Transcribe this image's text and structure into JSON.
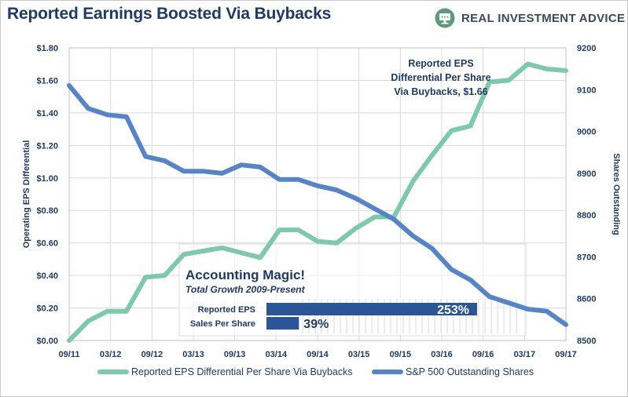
{
  "header": {
    "title": "Reported Earnings Boosted Via Buybacks",
    "brand": "REAL INVESTMENT ADVICE",
    "brand_logo_icon": "chart-monitor-logo-icon"
  },
  "colors": {
    "eps_series": "#7ccaa9",
    "shares_series": "#5585c8",
    "text": "#1f3a66",
    "bar": "#2b5597",
    "grid": "#d9d9d9"
  },
  "chart_data": {
    "type": "line",
    "title": "Reported Earnings Boosted Via Buybacks",
    "x_tick_labels": [
      "09/11",
      "03/12",
      "09/12",
      "03/13",
      "09/13",
      "03/14",
      "09/14",
      "03/15",
      "09/15",
      "03/16",
      "09/16",
      "03/17",
      "09/17"
    ],
    "x_range": [
      0,
      26
    ],
    "y_left": {
      "label": "Operating EPS Differential",
      "ticks": [
        "$0.00",
        "$0.20",
        "$0.40",
        "$0.60",
        "$0.80",
        "$1.00",
        "$1.20",
        "$1.40",
        "$1.60",
        "$1.80"
      ],
      "range": [
        0,
        1.8
      ]
    },
    "y_right": {
      "label": "Shares Outstanding",
      "ticks": [
        "8500",
        "8600",
        "8700",
        "8800",
        "8900",
        "9000",
        "9100",
        "9200"
      ],
      "range": [
        8500,
        9200
      ]
    },
    "series": [
      {
        "name": "Reported EPS Differential Per Share Via Buybacks",
        "axis": "left",
        "x": [
          0,
          1,
          2,
          3,
          4,
          5,
          6,
          7,
          8,
          9,
          10,
          11,
          12,
          13,
          14,
          15,
          16,
          17,
          18,
          19,
          20,
          21,
          22,
          23,
          24,
          25,
          26
        ],
        "values": [
          0.0,
          0.12,
          0.18,
          0.18,
          0.39,
          0.4,
          0.53,
          0.55,
          0.57,
          0.54,
          0.51,
          0.68,
          0.68,
          0.61,
          0.6,
          0.69,
          0.76,
          0.76,
          0.98,
          1.14,
          1.29,
          1.32,
          1.59,
          1.6,
          1.7,
          1.67,
          1.66
        ]
      },
      {
        "name": "S&P 500 Outstanding Shares",
        "axis": "right",
        "x": [
          0,
          1,
          2,
          3,
          4,
          5,
          6,
          7,
          8,
          9,
          10,
          11,
          12,
          13,
          14,
          15,
          16,
          17,
          18,
          19,
          20,
          21,
          22,
          23,
          24,
          25,
          26
        ],
        "values": [
          9110,
          9055,
          9040,
          9035,
          8940,
          8930,
          8905,
          8905,
          8900,
          8920,
          8915,
          8885,
          8885,
          8870,
          8860,
          8840,
          8815,
          8790,
          8750,
          8720,
          8670,
          8645,
          8605,
          8590,
          8575,
          8570,
          8538
        ]
      }
    ],
    "annotation": [
      "Reported EPS",
      "Differential Per Share",
      "Via Buybacks,  $1.66"
    ],
    "inset": {
      "title": "Accounting Magic!",
      "subtitle": "Total Growth 2009-Present",
      "max_value": 253,
      "bars": [
        {
          "label": "Reported EPS",
          "value": 253,
          "value_label": "253%"
        },
        {
          "label": "Sales Per Share",
          "value": 39,
          "value_label": "39%"
        }
      ]
    },
    "legend": [
      "Reported EPS Differential Per Share Via Buybacks",
      "S&P 500 Outstanding Shares"
    ],
    "legend_position": "bottom"
  }
}
